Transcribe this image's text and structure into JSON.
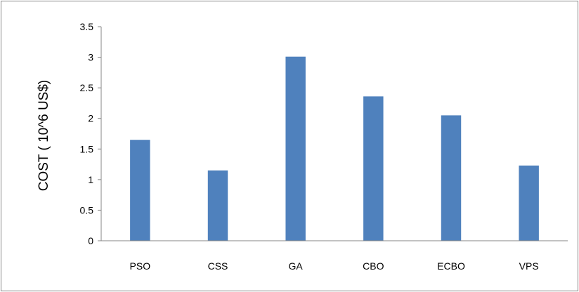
{
  "chart_data": {
    "type": "bar",
    "title": "",
    "xlabel": "",
    "ylabel": "COST ( 10^6 US$)",
    "categories": [
      "PSO",
      "CSS",
      "GA",
      "CBO",
      "ECBO",
      "VPS"
    ],
    "values": [
      1.65,
      1.15,
      3.01,
      2.36,
      2.05,
      1.23
    ],
    "ylim": [
      0,
      3.5
    ],
    "yticks": [
      "0",
      "0.5",
      "1",
      "1.5",
      "2",
      "2.5",
      "3",
      "3.5"
    ],
    "grid": false,
    "legend": "none",
    "bar_color": "#4F81BD",
    "axis_color": "#868686",
    "frame_color": "#868686"
  }
}
